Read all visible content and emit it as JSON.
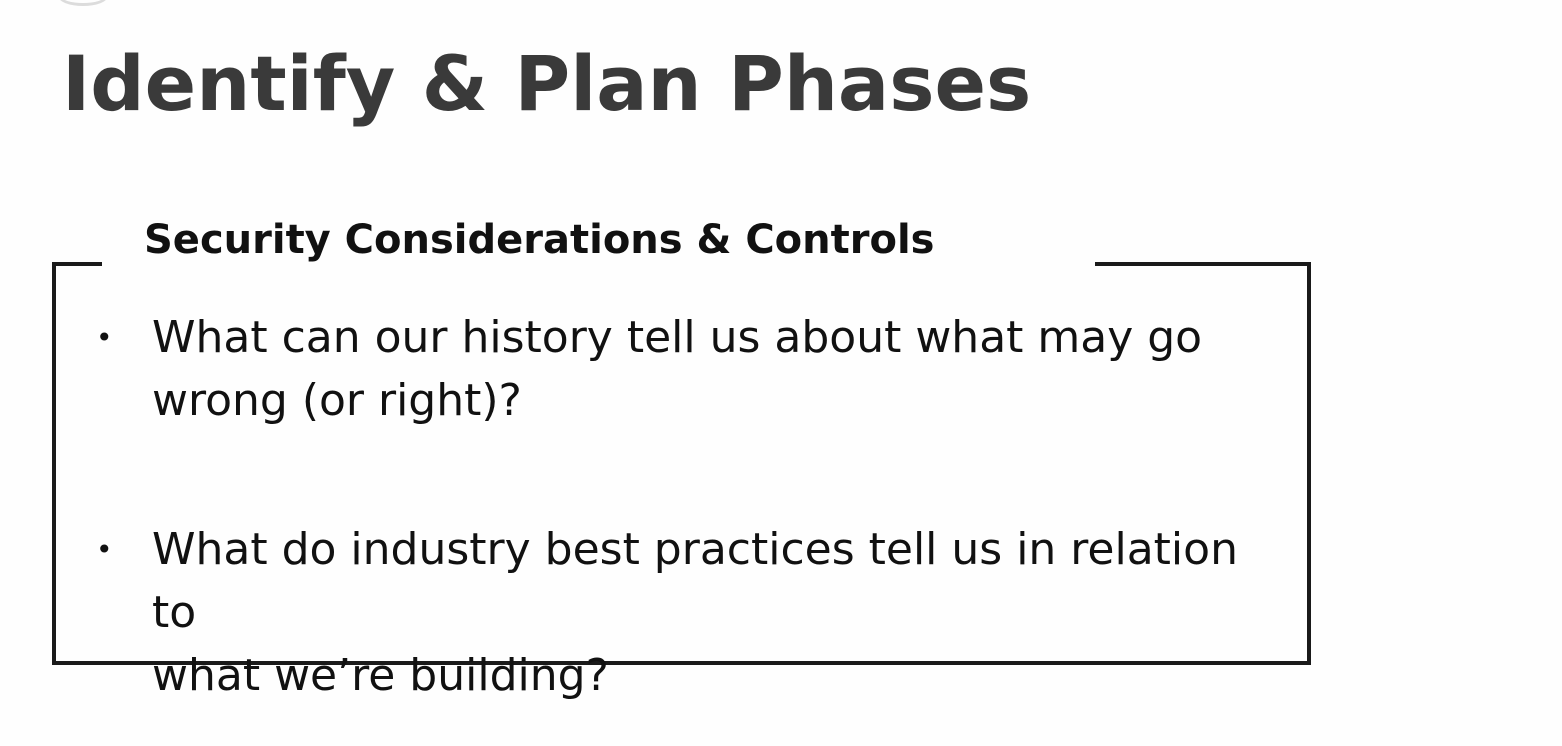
{
  "slide": {
    "title": "Identify & Plan Phases"
  },
  "box": {
    "heading": "Security Considerations & Controls",
    "bullet_symbol": "•",
    "items": [
      {
        "line1": "What can our history tell us about what may go",
        "line2": "wrong (or right)?"
      },
      {
        "line1": "What do industry best practices tell us in relation to",
        "line2": "what we’re building?"
      }
    ]
  }
}
